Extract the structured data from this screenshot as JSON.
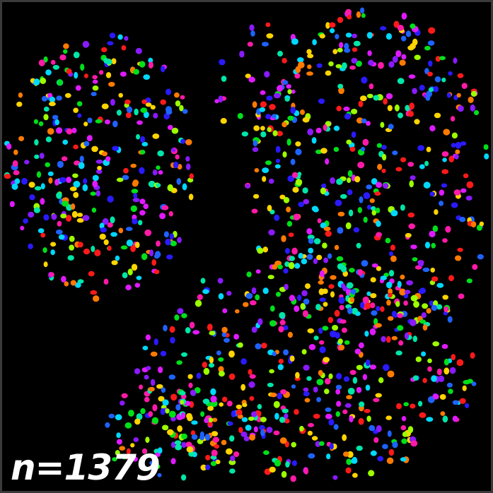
{
  "image": {
    "background_color": "#000000",
    "frame_color": "#3a3a3a",
    "label_color": "#ffffff",
    "cell_palette": [
      "#ff1a1a",
      "#ff7a00",
      "#ffd400",
      "#9cff00",
      "#00e01a",
      "#00e6a8",
      "#00d8ff",
      "#1e63ff",
      "#2a1aff",
      "#8a1aff",
      "#e01aff",
      "#ff1aa8"
    ]
  },
  "count_label": "n=1379"
}
